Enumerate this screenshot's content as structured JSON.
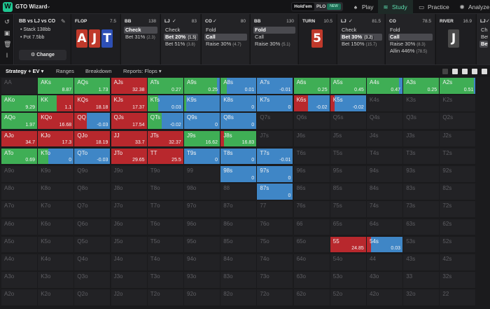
{
  "app": {
    "title": "GTO Wizard",
    "logo_letter": "W"
  },
  "game_toggle": {
    "holdem": "Hold'em",
    "plo": "PLO",
    "new_badge": "NEW"
  },
  "nav": [
    {
      "label": "Play",
      "icon": "spade-icon",
      "active": false
    },
    {
      "label": "Study",
      "icon": "book-stack-icon",
      "active": true
    },
    {
      "label": "Practice",
      "icon": "gamepad-icon",
      "active": false
    },
    {
      "label": "Analyze",
      "icon": "bulb-icon",
      "active": false
    }
  ],
  "spot": {
    "title": "BB vs LJ vs CO",
    "stack": "Stack 138bb",
    "pot": "Pot 7.5bb",
    "change_label": "Change"
  },
  "flop": {
    "label": "FLOP",
    "pot": "7.5",
    "cards": [
      {
        "rank": "A",
        "suit_color": "#c0392b"
      },
      {
        "rank": "J",
        "suit_color": "#c0392b"
      },
      {
        "rank": "T",
        "suit_color": "#2d4fb5"
      }
    ]
  },
  "turn": {
    "label": "TURN",
    "pot": "10.5",
    "card": {
      "rank": "5",
      "suit_color": "#c0392b"
    }
  },
  "river": {
    "label": "RIVER",
    "pot": "16.9",
    "card": {
      "rank": "J",
      "suit_color": "#4a4a4a"
    }
  },
  "panels": [
    {
      "name": "BB",
      "val": "138",
      "actions": [
        {
          "label": "Check",
          "sub": "",
          "sel": true
        },
        {
          "label": "Bet 31%",
          "sub": "(2.3)",
          "sel": false
        }
      ]
    },
    {
      "name": "LJ",
      "val": "83",
      "check": true,
      "actions": [
        {
          "label": "Check",
          "sub": "",
          "sel": false
        },
        {
          "label": "Bet 20%",
          "sub": "(1.5)",
          "sel": true
        },
        {
          "label": "Bet 51%",
          "sub": "(3.8)",
          "sel": false
        }
      ]
    },
    {
      "name": "CO",
      "val": "80",
      "check": true,
      "actions": [
        {
          "label": "Fold",
          "sub": "",
          "sel": false
        },
        {
          "label": "Call",
          "sub": "",
          "sel": true
        },
        {
          "label": "Raise 30%",
          "sub": "(4.7)",
          "sel": false
        }
      ]
    },
    {
      "name": "BB",
      "val": "130",
      "actions": [
        {
          "label": "Fold",
          "sub": "",
          "sel": true
        },
        {
          "label": "Call",
          "sub": "",
          "sel": false
        },
        {
          "label": "Raise 30%",
          "sub": "(5.1)",
          "sel": false
        }
      ]
    },
    {
      "name": "LJ",
      "val": "81.5",
      "check": true,
      "actions": [
        {
          "label": "Check",
          "sub": "",
          "sel": false
        },
        {
          "label": "Bet 30%",
          "sub": "(3.2)",
          "sel": true
        },
        {
          "label": "Bet 150%",
          "sub": "(15.7)",
          "sel": false
        }
      ]
    },
    {
      "name": "CO",
      "val": "78.5",
      "actions": [
        {
          "label": "Fold",
          "sub": "",
          "sel": false
        },
        {
          "label": "Call",
          "sub": "",
          "sel": true
        },
        {
          "label": "Raise 30%",
          "sub": "(8.3)",
          "sel": false
        },
        {
          "label": "Allin 446%",
          "sub": "(78.5)",
          "sel": false
        }
      ]
    },
    {
      "name": "LJ",
      "val": "",
      "check": true,
      "actions": [
        {
          "label": "Che",
          "sub": "",
          "sel": false
        },
        {
          "label": "Bet",
          "sub": "",
          "sel": false
        },
        {
          "label": "Bet 3",
          "sub": "",
          "sel": true
        }
      ]
    }
  ],
  "toolbar": {
    "strategy": "Strategy + EV",
    "ranges": "Ranges",
    "breakdown": "Breakdown",
    "reports": "Reports: Flops"
  },
  "colors": {
    "raise": "#b8282d",
    "raise_dark": "#8e1c22",
    "call": "#3fae55",
    "fold": "#3f86c6",
    "check": "#3fae55"
  },
  "grid": {
    "ranks": [
      "A",
      "K",
      "Q",
      "J",
      "T",
      "9",
      "8",
      "7",
      "6",
      "5",
      "4",
      "3",
      "2"
    ],
    "active": {
      "AKs": {
        "ev": "8.87",
        "mix": [
          [
            "call",
            1
          ]
        ]
      },
      "AQs": {
        "ev": "1.73",
        "mix": [
          [
            "call",
            1
          ]
        ]
      },
      "AJs": {
        "ev": "32.38",
        "mix": [
          [
            "raise",
            1
          ]
        ]
      },
      "ATs": {
        "ev": "0.27",
        "mix": [
          [
            "call",
            1
          ]
        ]
      },
      "A9s": {
        "ev": "0.25",
        "mix": [
          [
            "call",
            0.92
          ],
          [
            "fold",
            0.08
          ]
        ]
      },
      "A8s": {
        "ev": "0.01",
        "mix": [
          [
            "call",
            0.18
          ],
          [
            "fold",
            0.82
          ]
        ]
      },
      "A7s": {
        "ev": "-0.01",
        "mix": [
          [
            "fold",
            1
          ]
        ]
      },
      "A6s": {
        "ev": "0.25",
        "mix": [
          [
            "call",
            1
          ]
        ]
      },
      "A5s": {
        "ev": "0.45",
        "mix": [
          [
            "call",
            1
          ]
        ]
      },
      "A4s": {
        "ev": "0.47",
        "mix": [
          [
            "call",
            0.9
          ],
          [
            "fold",
            0.1
          ]
        ]
      },
      "A3s": {
        "ev": "0.25",
        "mix": [
          [
            "call",
            1
          ]
        ]
      },
      "A2s": {
        "ev": "0.51",
        "mix": [
          [
            "call",
            0.95
          ],
          [
            "fold",
            0.05
          ]
        ]
      },
      "AKo": {
        "ev": "9.29",
        "mix": [
          [
            "call",
            1
          ]
        ]
      },
      "KK": {
        "ev": "1.1",
        "mix": [
          [
            "call",
            0.52
          ],
          [
            "raise",
            0.48
          ]
        ]
      },
      "KQs": {
        "ev": "18.18",
        "mix": [
          [
            "raise",
            1
          ]
        ]
      },
      "KJs": {
        "ev": "17.37",
        "mix": [
          [
            "raise",
            1
          ]
        ]
      },
      "KTs": {
        "ev": "0.03",
        "mix": [
          [
            "call",
            0.3
          ],
          [
            "fold",
            0.7
          ]
        ]
      },
      "K9s": {
        "ev": "",
        "mix": [
          [
            "call",
            0.06
          ],
          [
            "fold",
            0.94
          ]
        ]
      },
      "K8s": {
        "ev": "0",
        "mix": [
          [
            "fold",
            1
          ]
        ]
      },
      "K7s": {
        "ev": "0",
        "mix": [
          [
            "fold",
            1
          ]
        ]
      },
      "K6s": {
        "ev": "-0.02",
        "mix": [
          [
            "raise",
            0.4
          ],
          [
            "fold",
            0.6
          ]
        ]
      },
      "K5s": {
        "ev": "-0.02",
        "mix": [
          [
            "raise",
            0.12
          ],
          [
            "fold",
            0.88
          ]
        ]
      },
      "AQo": {
        "ev": "1.97",
        "mix": [
          [
            "call",
            1
          ]
        ]
      },
      "KQo": {
        "ev": "16.68",
        "mix": [
          [
            "raise",
            1
          ]
        ]
      },
      "QQ": {
        "ev": "-0.03",
        "mix": [
          [
            "raise",
            0.34
          ],
          [
            "fold",
            0.66
          ]
        ]
      },
      "QJs": {
        "ev": "17.54",
        "mix": [
          [
            "raise",
            1
          ]
        ]
      },
      "QTs": {
        "ev": "-0.02",
        "mix": [
          [
            "call",
            0.4
          ],
          [
            "fold",
            0.6
          ]
        ]
      },
      "Q9s": {
        "ev": "0",
        "mix": [
          [
            "fold",
            1
          ]
        ]
      },
      "Q8s": {
        "ev": "0",
        "mix": [
          [
            "fold",
            1
          ]
        ]
      },
      "AJo": {
        "ev": "34.7",
        "mix": [
          [
            "raise",
            1
          ]
        ]
      },
      "KJo": {
        "ev": "17.3",
        "mix": [
          [
            "raise",
            1
          ]
        ]
      },
      "QJo": {
        "ev": "18.19",
        "mix": [
          [
            "raise",
            1
          ]
        ]
      },
      "JJ": {
        "ev": "33.7",
        "mix": [
          [
            "raise",
            1
          ]
        ]
      },
      "JTs": {
        "ev": "32.37",
        "mix": [
          [
            "raise",
            1
          ]
        ]
      },
      "J9s": {
        "ev": "16.62",
        "mix": [
          [
            "call",
            1
          ]
        ]
      },
      "J8s": {
        "ev": "16.83",
        "mix": [
          [
            "raise",
            0.1
          ],
          [
            "call",
            0.9
          ]
        ]
      },
      "ATo": {
        "ev": "0.69",
        "mix": [
          [
            "call",
            1
          ]
        ]
      },
      "KTo": {
        "ev": "0",
        "mix": [
          [
            "call",
            0.3
          ],
          [
            "fold",
            0.7
          ]
        ]
      },
      "QTo": {
        "ev": "-0.03",
        "mix": [
          [
            "fold",
            1
          ]
        ]
      },
      "JTo": {
        "ev": "29.65",
        "mix": [
          [
            "raise",
            1
          ]
        ]
      },
      "TT": {
        "ev": "25.5",
        "mix": [
          [
            "raise",
            1
          ]
        ]
      },
      "T9s": {
        "ev": "0",
        "mix": [
          [
            "fold",
            1
          ]
        ]
      },
      "T8s": {
        "ev": "0",
        "mix": [
          [
            "fold",
            1
          ]
        ]
      },
      "T7s": {
        "ev": "-0.01",
        "mix": [
          [
            "fold",
            1
          ]
        ]
      },
      "98s": {
        "ev": "0",
        "mix": [
          [
            "fold",
            1
          ]
        ]
      },
      "97s": {
        "ev": "0",
        "mix": [
          [
            "fold",
            1
          ]
        ]
      },
      "87s": {
        "ev": "0",
        "mix": [
          [
            "fold",
            1
          ]
        ]
      },
      "55": {
        "ev": "24.85",
        "mix": [
          [
            "raise",
            1
          ]
        ]
      },
      "54s": {
        "ev": "0.03",
        "mix": [
          [
            "raise",
            0.12
          ],
          [
            "fold",
            0.88
          ]
        ]
      }
    }
  }
}
